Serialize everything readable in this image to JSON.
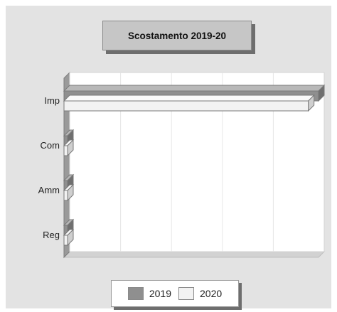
{
  "chart_data": {
    "type": "bar",
    "orientation": "horizontal",
    "title": "Scostamento 2019-20",
    "categories": [
      "Imp",
      "Com",
      "Amm",
      "Reg"
    ],
    "series": [
      {
        "name": "2019",
        "color": "#8f8f8f",
        "values": [
          100,
          0,
          0,
          0
        ]
      },
      {
        "name": "2020",
        "color": "#f2f2f2",
        "values": [
          96,
          0,
          0,
          0
        ]
      }
    ],
    "xlim": [
      0,
      100
    ],
    "grid": true,
    "legend_position": "bottom"
  }
}
